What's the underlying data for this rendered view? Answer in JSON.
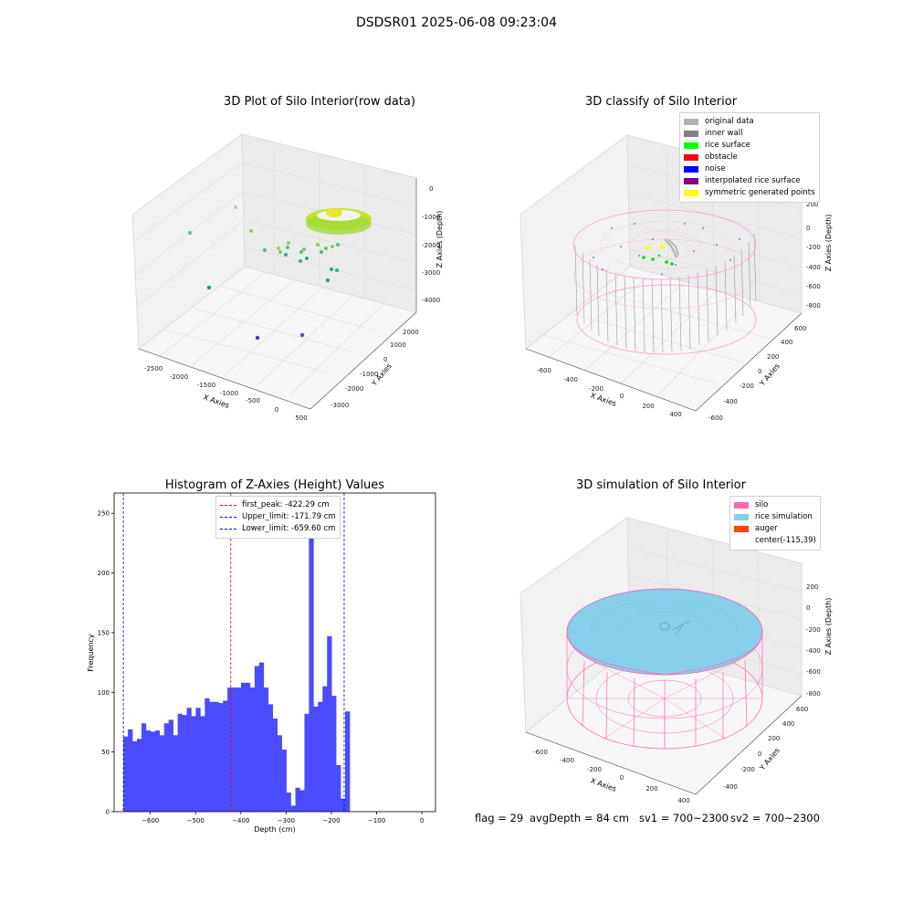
{
  "suptitle": "DSDSR01 2025-06-08 09:23:04",
  "colors": {
    "original": "#b3b3b3",
    "inner_wall": "#808080",
    "rice_surface": "#00ff00",
    "obstacle": "#ff0000",
    "noise": "#0000ff",
    "interpolated": "#800080",
    "symmetric": "#ffff00",
    "silo": "#ff69b4",
    "rice_sim": "#87ceeb",
    "auger": "#ff4500",
    "hist_bar": "#4b4bff"
  },
  "plot1": {
    "title": "3D Plot of Silo Interior(row data)",
    "xlabel": "X Axies",
    "ylabel": "Y Axies",
    "zlabel": "Z Axies (Depth)",
    "xticks": [
      "-2500",
      "-2000",
      "-1500",
      "-1000",
      "-500",
      "0",
      "500"
    ],
    "yticks": [
      "2000",
      "1000",
      "0",
      "-1000",
      "-2000",
      "-3000"
    ],
    "zticks": [
      "0",
      "-1000",
      "-2000",
      "-3000",
      "-4000"
    ]
  },
  "plot2": {
    "title": "3D classify of Silo Interior",
    "xlabel": "X Axies",
    "ylabel": "Y Axies",
    "zlabel": "Z Axies (Depth)",
    "xticks": [
      "-600",
      "-400",
      "-200",
      "0",
      "200",
      "400"
    ],
    "yticks": [
      "600",
      "400",
      "200",
      "0",
      "-200",
      "-400",
      "-600"
    ],
    "zticks": [
      "200",
      "0",
      "-200",
      "-400",
      "-600",
      "-800"
    ],
    "legend": [
      "original data",
      "inner wall",
      "rice surface",
      "obstacle",
      "noise",
      "interpolated rice surface",
      "symmetric generated points"
    ]
  },
  "plot4": {
    "title": "3D simulation of Silo Interior",
    "xlabel": "X Axies",
    "ylabel": "Y Axies",
    "zlabel": "Z Axies (Depth)",
    "xticks": [
      "-600",
      "-400",
      "-200",
      "0",
      "200",
      "400"
    ],
    "yticks": [
      "600",
      "400",
      "200",
      "0",
      "-200",
      "-400"
    ],
    "zticks": [
      "200",
      "0",
      "-200",
      "-400",
      "-600",
      "-800"
    ],
    "legend": [
      "silo",
      "rice simulation",
      "auger",
      "center(-115,39)"
    ]
  },
  "footer": {
    "flag": "flag = 29",
    "avg": "avgDepth = 84 cm",
    "sv1": "sv1 = 700~2300",
    "sv2": "sv2 = 700~2300"
  },
  "chart_data": {
    "type": "bar",
    "title": "Histogram of Z-Axies (Height) Values",
    "xlabel": "Depth (cm)",
    "ylabel": "Frequency",
    "xlim": [
      -680,
      30
    ],
    "ylim": [
      0,
      267
    ],
    "xticks": [
      -600,
      -500,
      -400,
      -300,
      -200,
      -100,
      0
    ],
    "yticks": [
      0,
      50,
      100,
      150,
      200,
      250
    ],
    "bin_start": -659.6,
    "bin_width": 10,
    "values": [
      63,
      69,
      59,
      61,
      74,
      68,
      67,
      68,
      64,
      74,
      77,
      64,
      82,
      81,
      87,
      80,
      87,
      80,
      95,
      92,
      92,
      91,
      93,
      104,
      104,
      104,
      108,
      108,
      104,
      122,
      125,
      104,
      90,
      78,
      64,
      52,
      16,
      5,
      20,
      18,
      82,
      255,
      88,
      92,
      105,
      147,
      97,
      39,
      11,
      84
    ],
    "vlines": [
      {
        "label": "first_peak: -422.29 cm",
        "x": -422.29,
        "color": "red"
      },
      {
        "label": "Upper_limit: -171.79 cm",
        "x": -171.79,
        "color": "blue"
      },
      {
        "label": "Lower_limit: -659.60 cm",
        "x": -659.6,
        "color": "blue"
      }
    ]
  }
}
